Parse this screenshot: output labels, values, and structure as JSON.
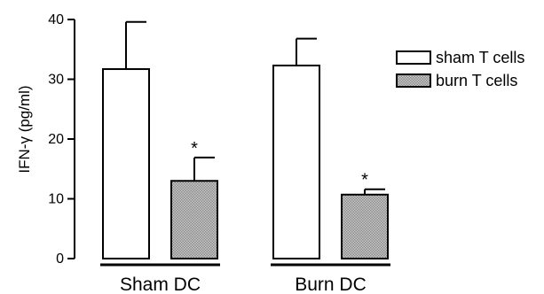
{
  "chart_data": {
    "type": "bar",
    "ylabel": "IFN-γ (pg/ml)",
    "ylim": [
      0,
      40
    ],
    "yticks": [
      0,
      10,
      20,
      30,
      40
    ],
    "ytick_labels": [
      "0",
      "10",
      "20",
      "30",
      "40"
    ],
    "categories": [
      "Sham DC",
      "Burn DC"
    ],
    "series": [
      {
        "name": "sham T cells",
        "values": [
          31.7,
          32.3
        ],
        "errors": [
          7.9,
          4.5
        ],
        "fill": "#ffffff"
      },
      {
        "name": "burn T cells",
        "values": [
          13.0,
          10.7
        ],
        "errors": [
          3.9,
          0.9
        ],
        "fill": "#b3b3b3"
      }
    ],
    "annotations": [
      {
        "text": "*",
        "category": "Sham DC",
        "series": "burn T cells"
      },
      {
        "text": "*",
        "category": "Burn DC",
        "series": "burn T cells"
      }
    ],
    "legend_position": "top-right"
  }
}
